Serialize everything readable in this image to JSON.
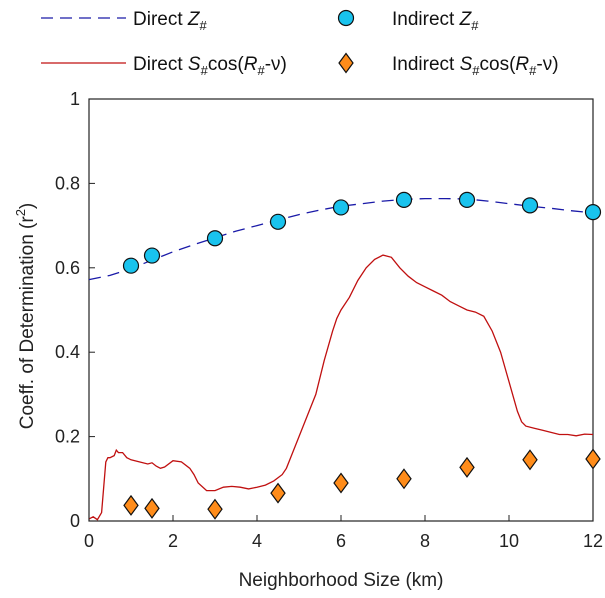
{
  "chart_data": {
    "type": "line",
    "xlabel": "Neighborhood Size (km)",
    "ylabel_main": "Coeff. of Determination (r",
    "ylabel_sup": "2",
    "ylabel_end": ")",
    "xlim": [
      0,
      12
    ],
    "ylim": [
      0,
      1
    ],
    "x_ticks": [
      0,
      2,
      4,
      6,
      8,
      10,
      12
    ],
    "y_ticks": [
      0,
      0.2,
      0.4,
      0.6,
      0.8,
      1
    ],
    "x_tick_labels": [
      "0",
      "2",
      "4",
      "6",
      "8",
      "10",
      "12"
    ],
    "y_tick_labels": [
      "0",
      "0.2",
      "0.4",
      "0.6",
      "0.8",
      "1"
    ],
    "grid": false,
    "legend_position": "top, above plot",
    "colors": {
      "direct_z": "#1a1aa8",
      "direct_s": "#c01010",
      "indirect_z_fill": "#19c3ee",
      "indirect_s_fill": "#ff8c1a",
      "marker_edge": "#111111"
    },
    "series": [
      {
        "name": "Direct Z#",
        "legend": {
          "pre": "Direct ",
          "var": "Z",
          "sub": "#"
        },
        "style": "dashed-line",
        "x": [
          0,
          0.5,
          1,
          1.5,
          2,
          2.5,
          3,
          3.5,
          4,
          4.5,
          5,
          5.5,
          6,
          6.5,
          7,
          7.5,
          8,
          8.5,
          9,
          9.5,
          10,
          10.5,
          11,
          11.5,
          12
        ],
        "y": [
          0.572,
          0.582,
          0.598,
          0.618,
          0.638,
          0.655,
          0.671,
          0.687,
          0.7,
          0.713,
          0.726,
          0.737,
          0.746,
          0.752,
          0.758,
          0.762,
          0.764,
          0.764,
          0.763,
          0.758,
          0.752,
          0.746,
          0.741,
          0.735,
          0.73
        ]
      },
      {
        "name": "Indirect Z#",
        "legend": {
          "pre": "Indirect ",
          "var": "Z",
          "sub": "#"
        },
        "style": "circle-markers",
        "x": [
          1,
          1.5,
          3,
          4.5,
          6,
          7.5,
          9,
          10.5,
          12
        ],
        "y": [
          0.605,
          0.629,
          0.67,
          0.709,
          0.743,
          0.761,
          0.761,
          0.748,
          0.732
        ]
      },
      {
        "name": "Direct S#cos(R#-ν)",
        "legend": {
          "pre": "Direct ",
          "var": "S",
          "sub": "#",
          "mid": "cos(",
          "var2": "R",
          "sub2": "#",
          "end": "-ν)"
        },
        "style": "solid-line",
        "x": [
          0,
          0.1,
          0.2,
          0.3,
          0.35,
          0.4,
          0.45,
          0.5,
          0.6,
          0.65,
          0.7,
          0.8,
          0.9,
          1.0,
          1.2,
          1.4,
          1.5,
          1.6,
          1.7,
          1.8,
          2.0,
          2.2,
          2.4,
          2.5,
          2.6,
          2.8,
          3.0,
          3.2,
          3.4,
          3.6,
          3.8,
          4.0,
          4.2,
          4.4,
          4.6,
          4.7,
          4.8,
          5.0,
          5.2,
          5.4,
          5.6,
          5.8,
          5.9,
          6.0,
          6.2,
          6.4,
          6.6,
          6.8,
          7.0,
          7.2,
          7.4,
          7.6,
          7.8,
          8.0,
          8.2,
          8.4,
          8.6,
          8.8,
          9.0,
          9.2,
          9.4,
          9.6,
          9.8,
          10.0,
          10.2,
          10.3,
          10.4,
          10.6,
          10.8,
          11.0,
          11.2,
          11.4,
          11.6,
          11.8,
          12.0
        ],
        "y": [
          0.005,
          0.01,
          0.003,
          0.02,
          0.08,
          0.14,
          0.15,
          0.15,
          0.155,
          0.168,
          0.162,
          0.162,
          0.15,
          0.145,
          0.14,
          0.135,
          0.138,
          0.13,
          0.125,
          0.128,
          0.143,
          0.14,
          0.125,
          0.11,
          0.09,
          0.072,
          0.072,
          0.08,
          0.082,
          0.08,
          0.076,
          0.08,
          0.085,
          0.095,
          0.11,
          0.125,
          0.15,
          0.2,
          0.25,
          0.3,
          0.38,
          0.45,
          0.48,
          0.5,
          0.53,
          0.57,
          0.6,
          0.62,
          0.63,
          0.625,
          0.6,
          0.58,
          0.565,
          0.555,
          0.545,
          0.535,
          0.52,
          0.51,
          0.5,
          0.495,
          0.485,
          0.45,
          0.4,
          0.33,
          0.26,
          0.235,
          0.225,
          0.22,
          0.215,
          0.21,
          0.205,
          0.205,
          0.202,
          0.206,
          0.205
        ]
      },
      {
        "name": "Indirect S#cos(R#-ν)",
        "legend": {
          "pre": "Indirect ",
          "var": "S",
          "sub": "#",
          "mid": "cos(",
          "var2": "R",
          "sub2": "#",
          "end": "-ν)"
        },
        "style": "diamond-markers",
        "x": [
          1,
          1.5,
          3,
          4.5,
          6,
          7.5,
          9,
          10.5,
          12
        ],
        "y": [
          0.037,
          0.03,
          0.028,
          0.066,
          0.09,
          0.1,
          0.127,
          0.145,
          0.147
        ]
      }
    ]
  }
}
